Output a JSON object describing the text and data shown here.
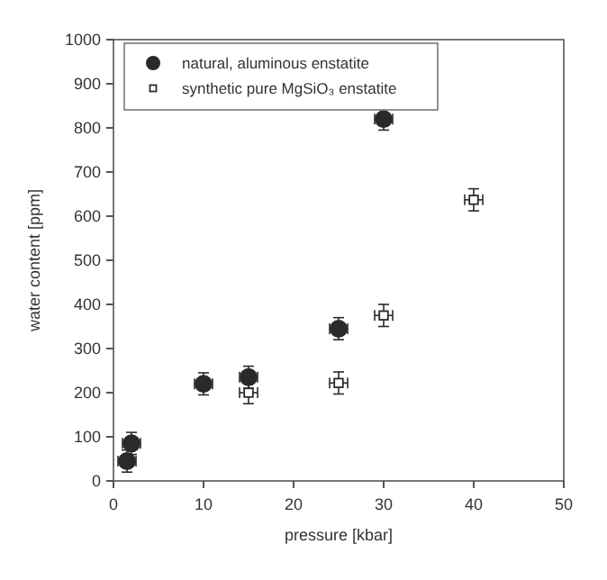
{
  "chart_data": {
    "type": "scatter",
    "xlabel": "pressure [kbar]",
    "ylabel": "water content [ppm]",
    "xlim": [
      0,
      50
    ],
    "xticks": [
      0,
      10,
      20,
      30,
      40,
      50
    ],
    "ylim": [
      0,
      1000
    ],
    "yticks": [
      0,
      100,
      200,
      300,
      400,
      500,
      600,
      700,
      800,
      900,
      1000
    ],
    "grid": false,
    "legend": "top left",
    "series": [
      {
        "name": "natural, aluminous enstatite",
        "color": "#2a2a2a",
        "marker": "circle",
        "x": [
          1.5,
          2,
          10,
          15,
          25,
          30
        ],
        "values": [
          45,
          85,
          220,
          235,
          345,
          820
        ],
        "errors": [
          25,
          25,
          25,
          25,
          25,
          25
        ],
        "xerrors": [
          1,
          1,
          1,
          1,
          1,
          1
        ]
      },
      {
        "name": "synthetic pure MgSiO₃ enstatite",
        "color": "#2a2a2a",
        "marker": "square",
        "x": [
          15,
          25,
          30,
          40
        ],
        "values": [
          200,
          222,
          375,
          637
        ],
        "errors": [
          25,
          25,
          25,
          25
        ],
        "xerrors": [
          1,
          1,
          1,
          1
        ]
      }
    ]
  }
}
